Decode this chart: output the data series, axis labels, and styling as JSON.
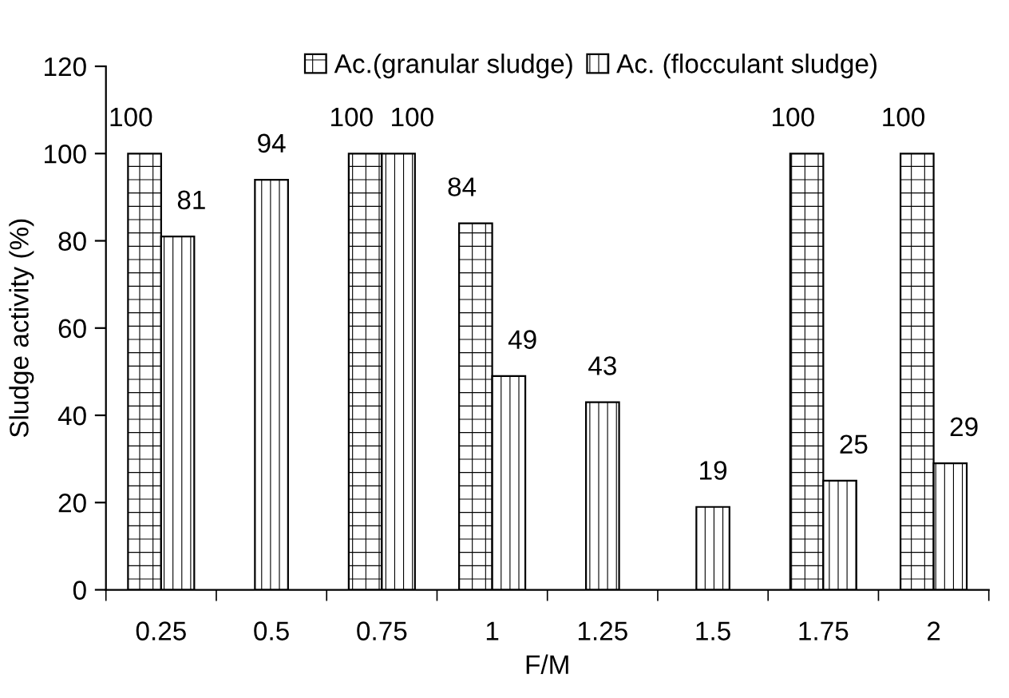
{
  "chart_data": {
    "type": "bar",
    "xlabel": "F/M",
    "ylabel": "Sludge activity (%)",
    "categories": [
      "0.25",
      "0.5",
      "0.75",
      "1",
      "1.25",
      "1.5",
      "1.75",
      "2"
    ],
    "series": [
      {
        "name": "Ac.(granular sludge)",
        "color": "#000000",
        "values": [
          100,
          null,
          100,
          84,
          null,
          null,
          100,
          100
        ]
      },
      {
        "name": "Ac. (flocculant sludge)",
        "color": "#000000",
        "values": [
          81,
          94,
          100,
          49,
          43,
          19,
          25,
          29
        ]
      }
    ],
    "ylim": [
      0,
      120
    ],
    "yticks": [
      0,
      20,
      40,
      60,
      80,
      100,
      120
    ],
    "grid": false,
    "legend": "top",
    "data_labels": true
  }
}
